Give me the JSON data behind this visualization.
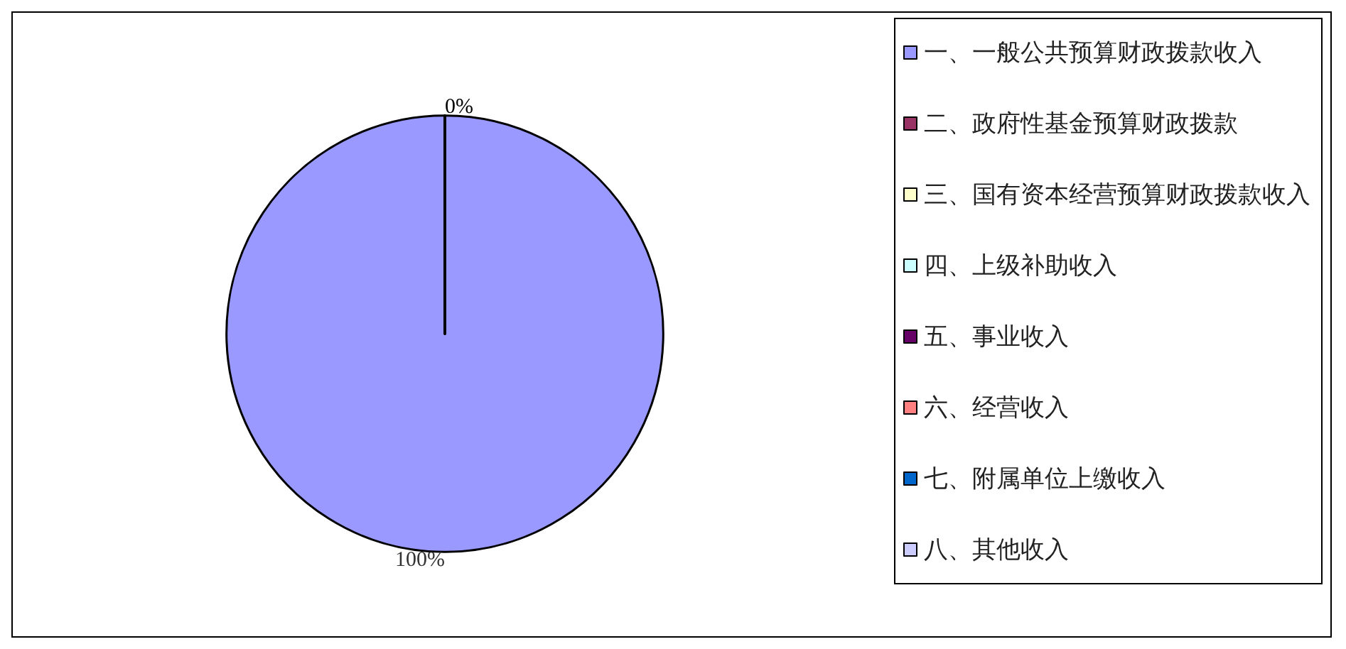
{
  "chart_data": {
    "type": "pie",
    "categories": [
      "一、一般公共预算财政拨款收入",
      "二、政府性基金预算财政拨款",
      "三、国有资本经营预算财政拨款收入",
      "四、上级补助收入",
      "五、事业收入",
      "六、经营收入",
      "七、附属单位上缴收入",
      "八、其他收入"
    ],
    "values": [
      100,
      0,
      0,
      0,
      0,
      0,
      0,
      0
    ],
    "value_labels": [
      "100%",
      "0%",
      null,
      null,
      null,
      null,
      null,
      null
    ],
    "colors": [
      "#9999ff",
      "#993366",
      "#ffffcc",
      "#ccffff",
      "#660066",
      "#ff8080",
      "#0066cc",
      "#ccccff"
    ],
    "legend": "right"
  }
}
